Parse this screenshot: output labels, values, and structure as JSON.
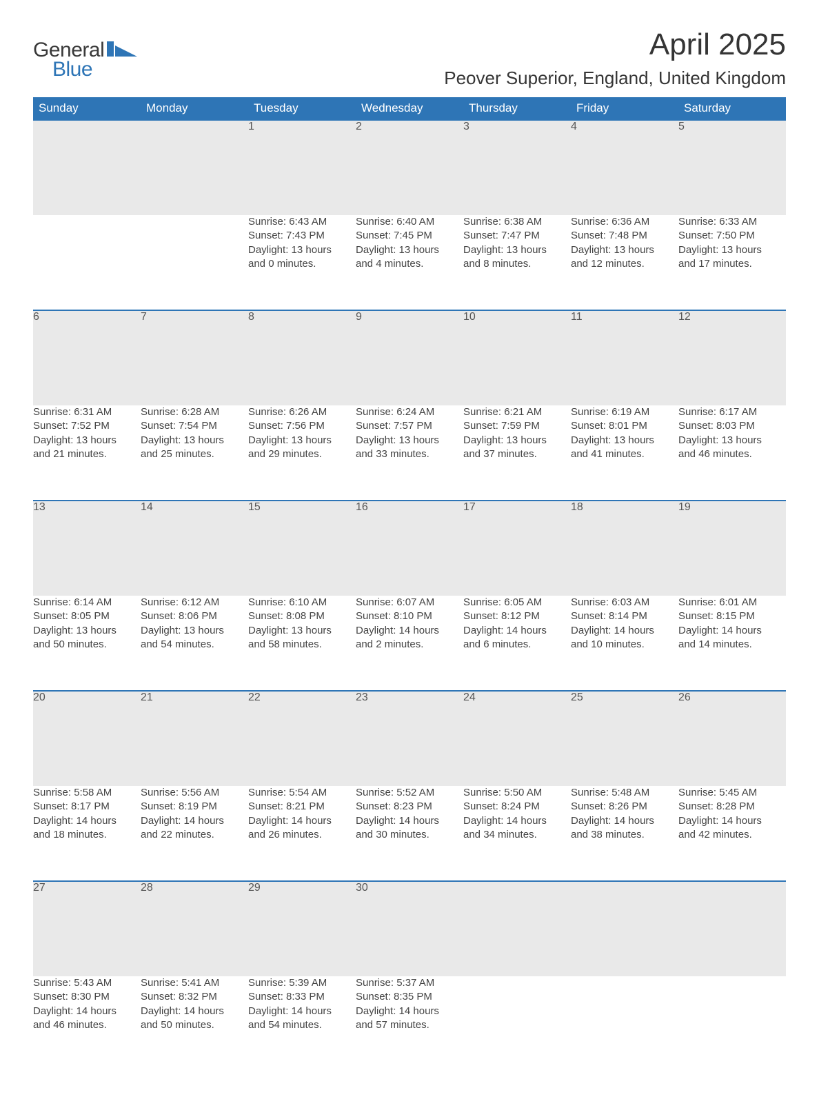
{
  "brand": {
    "word1": "General",
    "word2": "Blue",
    "icon_color": "#2e75b6"
  },
  "title": "April 2025",
  "location": "Peover Superior, England, United Kingdom",
  "colors": {
    "header_bg": "#2e75b6",
    "header_text": "#ffffff",
    "daynum_bg": "#e9e9e9",
    "row_divider": "#2e75b6",
    "body_text": "#444444",
    "page_bg": "#ffffff"
  },
  "weekdays": [
    "Sunday",
    "Monday",
    "Tuesday",
    "Wednesday",
    "Thursday",
    "Friday",
    "Saturday"
  ],
  "weeks": [
    [
      null,
      null,
      {
        "n": "1",
        "sunrise": "Sunrise: 6:43 AM",
        "sunset": "Sunset: 7:43 PM",
        "day1": "Daylight: 13 hours",
        "day2": "and 0 minutes."
      },
      {
        "n": "2",
        "sunrise": "Sunrise: 6:40 AM",
        "sunset": "Sunset: 7:45 PM",
        "day1": "Daylight: 13 hours",
        "day2": "and 4 minutes."
      },
      {
        "n": "3",
        "sunrise": "Sunrise: 6:38 AM",
        "sunset": "Sunset: 7:47 PM",
        "day1": "Daylight: 13 hours",
        "day2": "and 8 minutes."
      },
      {
        "n": "4",
        "sunrise": "Sunrise: 6:36 AM",
        "sunset": "Sunset: 7:48 PM",
        "day1": "Daylight: 13 hours",
        "day2": "and 12 minutes."
      },
      {
        "n": "5",
        "sunrise": "Sunrise: 6:33 AM",
        "sunset": "Sunset: 7:50 PM",
        "day1": "Daylight: 13 hours",
        "day2": "and 17 minutes."
      }
    ],
    [
      {
        "n": "6",
        "sunrise": "Sunrise: 6:31 AM",
        "sunset": "Sunset: 7:52 PM",
        "day1": "Daylight: 13 hours",
        "day2": "and 21 minutes."
      },
      {
        "n": "7",
        "sunrise": "Sunrise: 6:28 AM",
        "sunset": "Sunset: 7:54 PM",
        "day1": "Daylight: 13 hours",
        "day2": "and 25 minutes."
      },
      {
        "n": "8",
        "sunrise": "Sunrise: 6:26 AM",
        "sunset": "Sunset: 7:56 PM",
        "day1": "Daylight: 13 hours",
        "day2": "and 29 minutes."
      },
      {
        "n": "9",
        "sunrise": "Sunrise: 6:24 AM",
        "sunset": "Sunset: 7:57 PM",
        "day1": "Daylight: 13 hours",
        "day2": "and 33 minutes."
      },
      {
        "n": "10",
        "sunrise": "Sunrise: 6:21 AM",
        "sunset": "Sunset: 7:59 PM",
        "day1": "Daylight: 13 hours",
        "day2": "and 37 minutes."
      },
      {
        "n": "11",
        "sunrise": "Sunrise: 6:19 AM",
        "sunset": "Sunset: 8:01 PM",
        "day1": "Daylight: 13 hours",
        "day2": "and 41 minutes."
      },
      {
        "n": "12",
        "sunrise": "Sunrise: 6:17 AM",
        "sunset": "Sunset: 8:03 PM",
        "day1": "Daylight: 13 hours",
        "day2": "and 46 minutes."
      }
    ],
    [
      {
        "n": "13",
        "sunrise": "Sunrise: 6:14 AM",
        "sunset": "Sunset: 8:05 PM",
        "day1": "Daylight: 13 hours",
        "day2": "and 50 minutes."
      },
      {
        "n": "14",
        "sunrise": "Sunrise: 6:12 AM",
        "sunset": "Sunset: 8:06 PM",
        "day1": "Daylight: 13 hours",
        "day2": "and 54 minutes."
      },
      {
        "n": "15",
        "sunrise": "Sunrise: 6:10 AM",
        "sunset": "Sunset: 8:08 PM",
        "day1": "Daylight: 13 hours",
        "day2": "and 58 minutes."
      },
      {
        "n": "16",
        "sunrise": "Sunrise: 6:07 AM",
        "sunset": "Sunset: 8:10 PM",
        "day1": "Daylight: 14 hours",
        "day2": "and 2 minutes."
      },
      {
        "n": "17",
        "sunrise": "Sunrise: 6:05 AM",
        "sunset": "Sunset: 8:12 PM",
        "day1": "Daylight: 14 hours",
        "day2": "and 6 minutes."
      },
      {
        "n": "18",
        "sunrise": "Sunrise: 6:03 AM",
        "sunset": "Sunset: 8:14 PM",
        "day1": "Daylight: 14 hours",
        "day2": "and 10 minutes."
      },
      {
        "n": "19",
        "sunrise": "Sunrise: 6:01 AM",
        "sunset": "Sunset: 8:15 PM",
        "day1": "Daylight: 14 hours",
        "day2": "and 14 minutes."
      }
    ],
    [
      {
        "n": "20",
        "sunrise": "Sunrise: 5:58 AM",
        "sunset": "Sunset: 8:17 PM",
        "day1": "Daylight: 14 hours",
        "day2": "and 18 minutes."
      },
      {
        "n": "21",
        "sunrise": "Sunrise: 5:56 AM",
        "sunset": "Sunset: 8:19 PM",
        "day1": "Daylight: 14 hours",
        "day2": "and 22 minutes."
      },
      {
        "n": "22",
        "sunrise": "Sunrise: 5:54 AM",
        "sunset": "Sunset: 8:21 PM",
        "day1": "Daylight: 14 hours",
        "day2": "and 26 minutes."
      },
      {
        "n": "23",
        "sunrise": "Sunrise: 5:52 AM",
        "sunset": "Sunset: 8:23 PM",
        "day1": "Daylight: 14 hours",
        "day2": "and 30 minutes."
      },
      {
        "n": "24",
        "sunrise": "Sunrise: 5:50 AM",
        "sunset": "Sunset: 8:24 PM",
        "day1": "Daylight: 14 hours",
        "day2": "and 34 minutes."
      },
      {
        "n": "25",
        "sunrise": "Sunrise: 5:48 AM",
        "sunset": "Sunset: 8:26 PM",
        "day1": "Daylight: 14 hours",
        "day2": "and 38 minutes."
      },
      {
        "n": "26",
        "sunrise": "Sunrise: 5:45 AM",
        "sunset": "Sunset: 8:28 PM",
        "day1": "Daylight: 14 hours",
        "day2": "and 42 minutes."
      }
    ],
    [
      {
        "n": "27",
        "sunrise": "Sunrise: 5:43 AM",
        "sunset": "Sunset: 8:30 PM",
        "day1": "Daylight: 14 hours",
        "day2": "and 46 minutes."
      },
      {
        "n": "28",
        "sunrise": "Sunrise: 5:41 AM",
        "sunset": "Sunset: 8:32 PM",
        "day1": "Daylight: 14 hours",
        "day2": "and 50 minutes."
      },
      {
        "n": "29",
        "sunrise": "Sunrise: 5:39 AM",
        "sunset": "Sunset: 8:33 PM",
        "day1": "Daylight: 14 hours",
        "day2": "and 54 minutes."
      },
      {
        "n": "30",
        "sunrise": "Sunrise: 5:37 AM",
        "sunset": "Sunset: 8:35 PM",
        "day1": "Daylight: 14 hours",
        "day2": "and 57 minutes."
      },
      null,
      null,
      null
    ]
  ]
}
